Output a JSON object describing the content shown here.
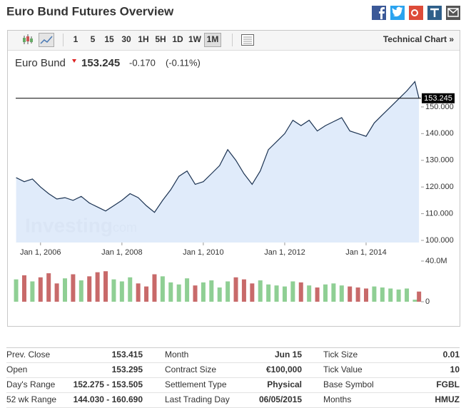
{
  "header": {
    "title": "Euro Bund Futures Overview"
  },
  "toolbar": {
    "intervals": [
      "1",
      "5",
      "15",
      "30",
      "1H",
      "5H",
      "1D",
      "1W",
      "1M"
    ],
    "selected_index": 8,
    "technical_chart": "Technical Chart »"
  },
  "quote": {
    "name": "Euro Bund",
    "price": "153.245",
    "change": "-0.170",
    "change_percent": "(-0.11%)"
  },
  "chart_data": {
    "type": "line",
    "watermark": "Investing",
    "watermark_suffix": ".com",
    "x": [
      2005.4,
      2005.6,
      2005.8,
      2006.0,
      2006.2,
      2006.4,
      2006.6,
      2006.8,
      2007.0,
      2007.2,
      2007.4,
      2007.6,
      2007.8,
      2008.0,
      2008.2,
      2008.4,
      2008.6,
      2008.8,
      2009.0,
      2009.2,
      2009.4,
      2009.6,
      2009.8,
      2010.0,
      2010.2,
      2010.4,
      2010.6,
      2010.8,
      2011.0,
      2011.2,
      2011.4,
      2011.6,
      2011.8,
      2012.0,
      2012.2,
      2012.4,
      2012.6,
      2012.8,
      2013.0,
      2013.2,
      2013.4,
      2013.6,
      2013.8,
      2014.0,
      2014.2,
      2014.4,
      2014.6,
      2014.8,
      2015.0,
      2015.2,
      2015.3
    ],
    "series": [
      {
        "color": "#1c3352",
        "fill": "#dae8f9",
        "values": [
          123.5,
          122,
          123,
          120,
          117.5,
          115.5,
          116,
          115,
          116.5,
          114,
          112.5,
          111,
          113,
          115,
          117.5,
          116,
          113,
          110.5,
          115,
          119,
          124,
          126,
          121,
          122,
          125,
          128,
          134,
          130,
          125,
          121,
          126,
          134,
          137,
          140,
          145,
          143,
          145,
          141,
          143,
          144.5,
          146,
          141,
          140,
          139,
          144,
          147,
          150,
          153,
          156,
          159.5,
          153.245
        ]
      }
    ],
    "xlim": [
      2005.39,
      2015.35
    ],
    "xticks": [
      {
        "value": 2006,
        "label": "Jan 1, 2006"
      },
      {
        "value": 2008,
        "label": "Jan 1, 2008"
      },
      {
        "value": 2010,
        "label": "Jan 1, 2010"
      },
      {
        "value": 2012,
        "label": "Jan 1, 2012"
      },
      {
        "value": 2014,
        "label": "Jan 1, 2014"
      }
    ],
    "ylim": [
      99.2,
      162
    ],
    "yticks": [
      {
        "value": 100,
        "label": "100.000"
      },
      {
        "value": 110,
        "label": "110.000"
      },
      {
        "value": 120,
        "label": "120.000"
      },
      {
        "value": 130,
        "label": "130.000"
      },
      {
        "value": 140,
        "label": "140.000"
      },
      {
        "value": 150,
        "label": "150.000"
      }
    ],
    "last": {
      "value": 153.245,
      "label": "153.245"
    },
    "volume": {
      "values": [
        22,
        26,
        20,
        24,
        28,
        18,
        23,
        27,
        21,
        25,
        29,
        30,
        22,
        20,
        24,
        18,
        15,
        27,
        25,
        19,
        17,
        23,
        16,
        19,
        21,
        14,
        20,
        24,
        22,
        18,
        21,
        17,
        16,
        15,
        20,
        19,
        16,
        14,
        17,
        18,
        16,
        15,
        14,
        13,
        15,
        14,
        13,
        12,
        13,
        2,
        10
      ],
      "colors": [
        "#8fcf94",
        "#c86a6a",
        "#8fcf94",
        "#c86a6a",
        "#c86a6a",
        "#c86a6a",
        "#8fcf94",
        "#c86a6a",
        "#8fcf94",
        "#c86a6a",
        "#c86a6a",
        "#c86a6a",
        "#8fcf94",
        "#8fcf94",
        "#8fcf94",
        "#c86a6a",
        "#c86a6a",
        "#c86a6a",
        "#8fcf94",
        "#8fcf94",
        "#8fcf94",
        "#8fcf94",
        "#c86a6a",
        "#8fcf94",
        "#8fcf94",
        "#8fcf94",
        "#8fcf94",
        "#c86a6a",
        "#c86a6a",
        "#c86a6a",
        "#8fcf94",
        "#8fcf94",
        "#8fcf94",
        "#8fcf94",
        "#8fcf94",
        "#c86a6a",
        "#8fcf94",
        "#c86a6a",
        "#8fcf94",
        "#8fcf94",
        "#8fcf94",
        "#c86a6a",
        "#c86a6a",
        "#c86a6a",
        "#8fcf94",
        "#8fcf94",
        "#8fcf94",
        "#8fcf94",
        "#8fcf94",
        "#8fcf94",
        "#c86a6a"
      ],
      "ylim": [
        0,
        40
      ],
      "yticks": [
        0,
        {
          "value": 40,
          "label": "40.0M"
        }
      ]
    }
  },
  "stats": {
    "rows": [
      [
        "Prev. Close",
        "153.415",
        "Month",
        "Jun 15",
        "Tick Size",
        "0.01"
      ],
      [
        "Open",
        "153.295",
        "Contract Size",
        "€100,000",
        "Tick Value",
        "10"
      ],
      [
        "Day's Range",
        "152.275 - 153.505",
        "Settlement Type",
        "Physical",
        "Base Symbol",
        "FGBL"
      ],
      [
        "52 wk Range",
        "144.030 - 160.690",
        "Last Trading Day",
        "06/05/2015",
        "Months",
        "HMUZ"
      ]
    ]
  }
}
